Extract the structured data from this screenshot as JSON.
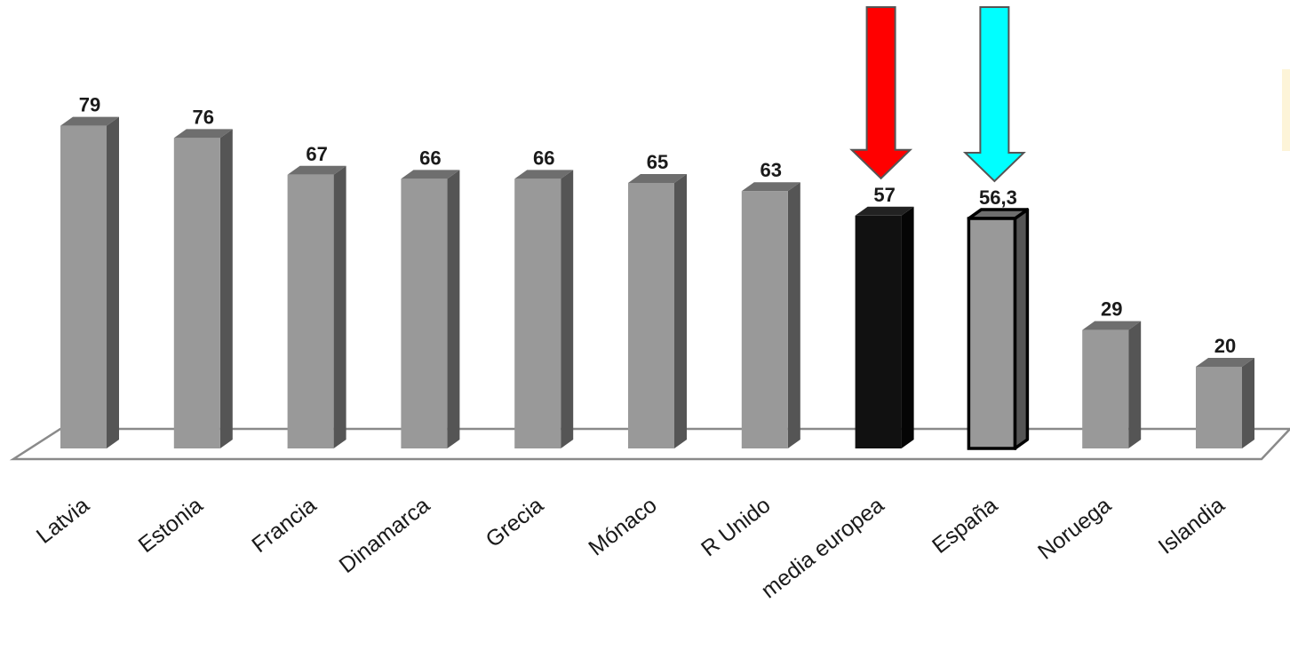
{
  "chart_data": {
    "type": "bar",
    "style": "3d-column",
    "title": "",
    "xlabel": "",
    "ylabel": "",
    "ylim": [
      0,
      90
    ],
    "grid": false,
    "legend": "none",
    "categories": [
      "Latvia",
      "Estonia",
      "Francia",
      "Dinamarca",
      "Grecia",
      "Mónaco",
      "R Unido",
      "media europea",
      "España",
      "Noruega",
      "Islandia"
    ],
    "values": [
      79,
      76,
      67,
      66,
      66,
      65,
      63,
      57,
      56.3,
      29,
      20
    ],
    "value_labels": [
      "79",
      "76",
      "67",
      "66",
      "66",
      "65",
      "63",
      "57",
      "56,3",
      "29",
      "20"
    ],
    "bar_styles": [
      "normal",
      "normal",
      "normal",
      "normal",
      "normal",
      "normal",
      "normal",
      "black",
      "outlined",
      "normal",
      "normal"
    ],
    "colors": {
      "bar_front": "#999999",
      "bar_side": "#555555",
      "bar_top": "#6e6e6e",
      "highlight_black": "#111111",
      "floor_stroke": "#8a8a8a"
    },
    "annotations": [
      {
        "type": "arrow-down",
        "target": "media europea",
        "color": "#ff0000"
      },
      {
        "type": "arrow-down",
        "target": "España",
        "color": "#00ffff"
      }
    ]
  }
}
